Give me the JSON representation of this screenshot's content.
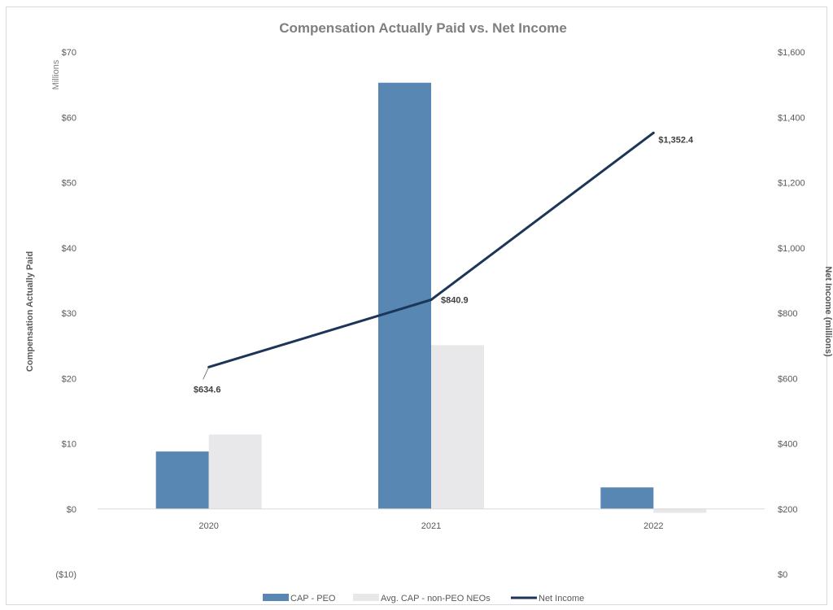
{
  "chart_data": {
    "type": "bar+line",
    "title": "Compensation Actually Paid vs. Net Income",
    "categories": [
      "2020",
      "2021",
      "2022"
    ],
    "ylabel": "Compensation Actually Paid",
    "y_unit": "Millions",
    "ylim": [
      -10,
      70
    ],
    "y_ticks": [
      "($10)",
      "$0",
      "$10",
      "$20",
      "$30",
      "$40",
      "$50",
      "$60",
      "$70"
    ],
    "y2label": "Net Income (millions)",
    "y2lim": [
      0,
      1600
    ],
    "y2_ticks": [
      "$0",
      "$200",
      "$400",
      "$600",
      "$800",
      "$1,000",
      "$1,200",
      "$1,400",
      "$1,600"
    ],
    "series": [
      {
        "name": "CAP - PEO",
        "type": "bar",
        "axis": "left",
        "color": "#5887b4",
        "values": [
          8.8,
          65.3,
          3.3
        ]
      },
      {
        "name": "Avg. CAP - non-PEO NEOs",
        "type": "bar",
        "axis": "left",
        "color": "#e8e8ea",
        "values": [
          11.4,
          25.1,
          -0.6
        ]
      },
      {
        "name": "Net Income",
        "type": "line",
        "axis": "right",
        "color": "#1c3558",
        "values": [
          634.6,
          840.9,
          1352.4
        ],
        "labels": [
          "$634.6",
          "$840.9",
          "$1,352.4"
        ]
      }
    ],
    "grid": false,
    "legend_position": "bottom"
  }
}
